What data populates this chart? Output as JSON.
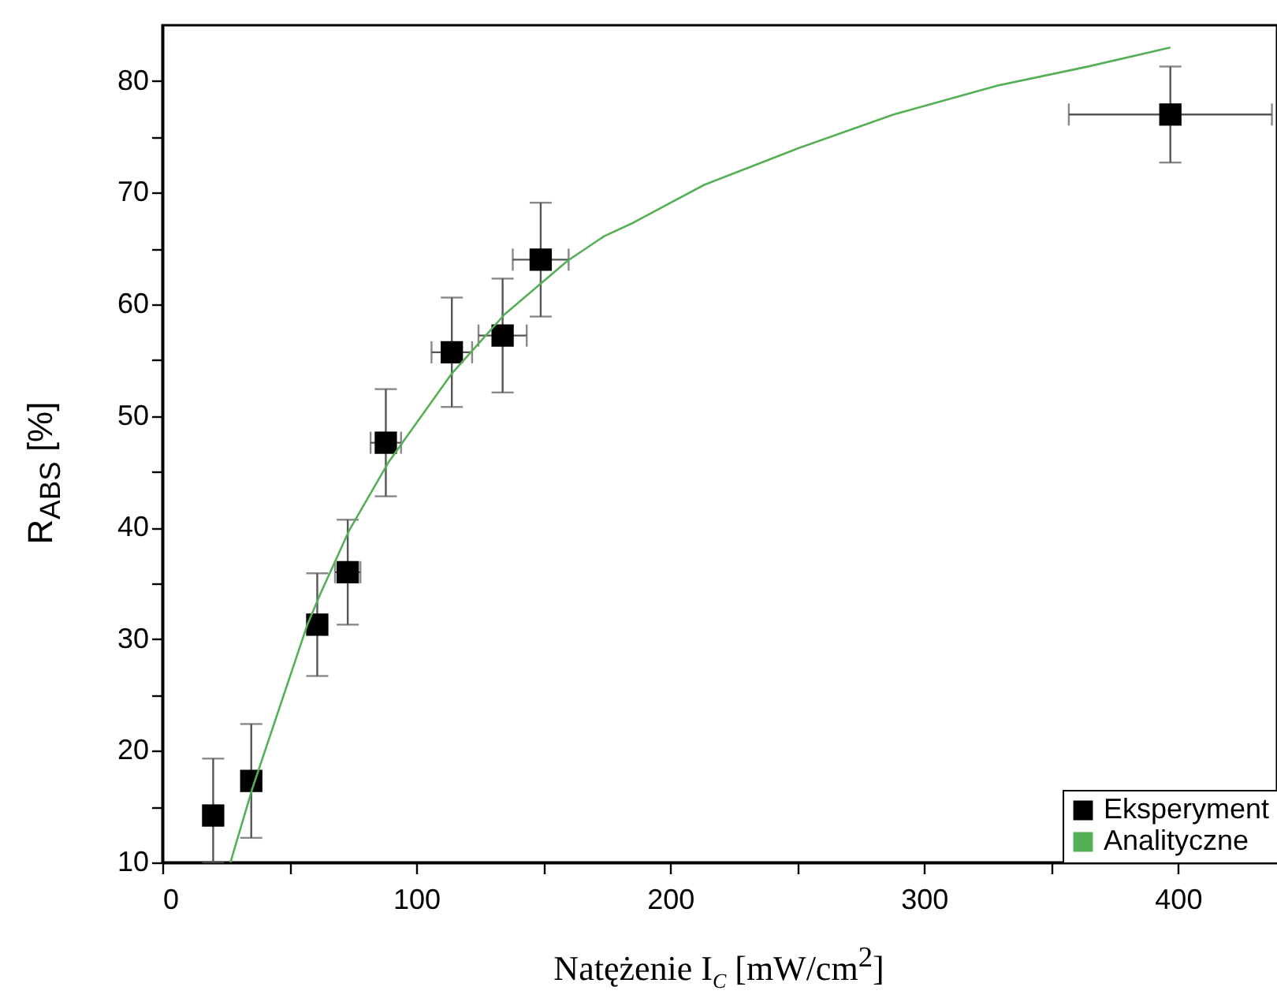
{
  "chart_data": {
    "type": "scatter",
    "xlabel": "Natężenie I$_{C}$ [mW/cm$^{2}$]",
    "ylabel": "R$_{ABS}$ [%]",
    "xlim": [
      0,
      439
    ],
    "ylim": [
      10,
      85
    ],
    "xticks": [
      0,
      {
        "value": 50,
        "label": null
      },
      100,
      {
        "value": 150,
        "label": null
      },
      200,
      {
        "value": 250,
        "label": null
      },
      300,
      {
        "value": 350,
        "label": null
      },
      400
    ],
    "yticks": [
      10,
      {
        "value": 15,
        "label": null
      },
      20,
      {
        "value": 25,
        "label": null
      },
      30,
      {
        "value": 35,
        "label": null
      },
      40,
      {
        "value": 45,
        "label": null
      },
      50,
      {
        "value": 55,
        "label": null
      },
      60,
      {
        "value": 65,
        "label": null
      },
      70,
      {
        "value": 75,
        "label": null
      },
      80
    ],
    "grid": false,
    "legend": "bottom right",
    "series": [
      {
        "name": "Eksperyment",
        "marker": "square",
        "color": "#000000",
        "x": [
          20,
          35,
          61,
          73,
          88,
          114,
          134,
          149,
          397
        ],
        "values": [
          14.2,
          17.3,
          31.3,
          36.0,
          47.6,
          55.7,
          57.2,
          64.0,
          77.0
        ],
        "errors": [
          [
            10,
            19.3
          ],
          5.1,
          4.6,
          4.7,
          4.8,
          4.9,
          5.1,
          5.1,
          4.3
        ],
        "xerrors": [
          null,
          null,
          3,
          5,
          6,
          8,
          9.5,
          11,
          40
        ]
      },
      {
        "name": "Analityczne",
        "type": "line",
        "color": "#55b055",
        "x": [
          26.8,
          35.4,
          57.1,
          62.3,
          73.7,
          89.2,
          114,
          134.8,
          159.6,
          174,
          184.5,
          213.4,
          250.7,
          288,
          329,
          364.6,
          397
        ],
        "values": [
          10,
          16.6,
          31.3,
          34.1,
          39.8,
          45.9,
          53.8,
          59.1,
          63.9,
          66.1,
          67.2,
          70.7,
          74.0,
          77.0,
          79.6,
          81.3,
          83.0
        ]
      }
    ]
  }
}
